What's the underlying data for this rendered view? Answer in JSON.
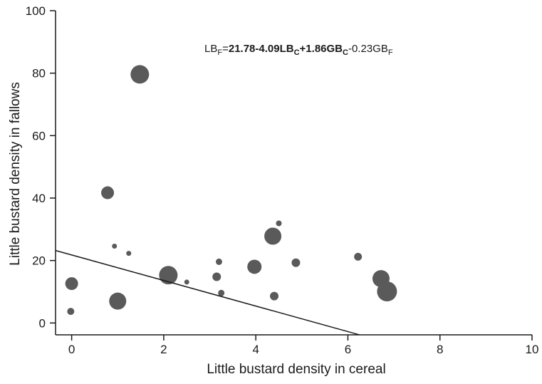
{
  "chart_data": {
    "type": "scatter",
    "title": "",
    "xlabel": "Little bustard density in cereal",
    "ylabel": "Little bustard density in fallows",
    "xlim": [
      -0.35,
      10
    ],
    "ylim": [
      -3.8,
      100
    ],
    "xticks": [
      0,
      2,
      4,
      6,
      8,
      10
    ],
    "yticks": [
      0,
      20,
      40,
      60,
      80,
      100
    ],
    "grid": false,
    "equation": {
      "lhs": "LB",
      "lhs_sub": "F",
      "eq": "=",
      "p1": "21.78-4.09LB",
      "p1_sub": "C",
      "p2": "+1.86GB",
      "p2_sub": "C",
      "p3": "-0.23GB",
      "p3_sub": "F"
    },
    "fit_line": {
      "intercept": 21.78,
      "slope": -4.09,
      "x_end": 6.25
    },
    "marker_color": "#5a5a5a",
    "line_color": "#1a1a1a",
    "points": [
      {
        "x": 1.48,
        "y": 79.6,
        "r": 13
      },
      {
        "x": 0.78,
        "y": 41.7,
        "r": 9
      },
      {
        "x": 0.0,
        "y": 12.6,
        "r": 9
      },
      {
        "x": -0.02,
        "y": 3.7,
        "r": 5
      },
      {
        "x": 0.93,
        "y": 24.6,
        "r": 3.5
      },
      {
        "x": 1.24,
        "y": 22.3,
        "r": 3.5
      },
      {
        "x": 1.0,
        "y": 7.0,
        "r": 12
      },
      {
        "x": 2.1,
        "y": 15.3,
        "r": 13
      },
      {
        "x": 2.5,
        "y": 13.1,
        "r": 3.5
      },
      {
        "x": 3.15,
        "y": 14.8,
        "r": 6
      },
      {
        "x": 3.2,
        "y": 19.6,
        "r": 4.5
      },
      {
        "x": 3.25,
        "y": 9.6,
        "r": 4.5
      },
      {
        "x": 3.97,
        "y": 18.0,
        "r": 10
      },
      {
        "x": 4.37,
        "y": 27.8,
        "r": 12
      },
      {
        "x": 4.5,
        "y": 31.9,
        "r": 4
      },
      {
        "x": 4.4,
        "y": 8.6,
        "r": 6
      },
      {
        "x": 4.87,
        "y": 19.3,
        "r": 6
      },
      {
        "x": 6.22,
        "y": 21.2,
        "r": 5.5
      },
      {
        "x": 6.72,
        "y": 14.2,
        "r": 12
      },
      {
        "x": 6.85,
        "y": 10.1,
        "r": 14
      }
    ]
  }
}
